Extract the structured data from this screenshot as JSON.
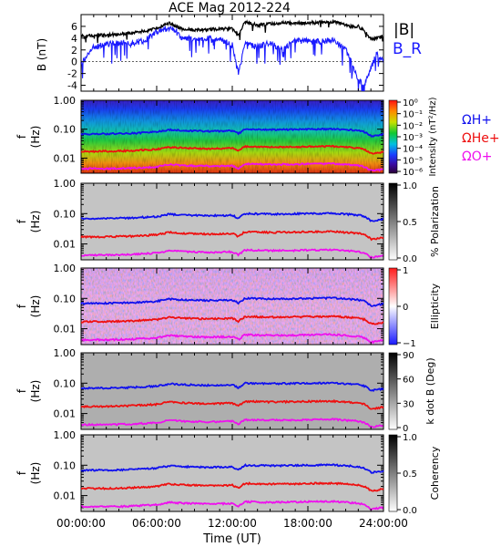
{
  "title": "ACE Mag 2012-224",
  "chart_data": [
    {
      "type": "line",
      "panel": "magnetic-field",
      "ylabel": "B (nT)",
      "ylim": [
        -5,
        8
      ],
      "yticks": [
        "-4",
        "-2",
        "0",
        "2",
        "4",
        "6"
      ],
      "legend": [
        "|B|",
        "B_R"
      ],
      "legend_placement": "right",
      "x_hours": [
        0,
        1,
        2,
        3,
        4,
        5,
        6,
        7,
        7.5,
        8,
        9,
        10,
        11,
        12,
        12.5,
        13,
        14,
        15,
        16,
        17,
        18,
        19,
        20,
        21,
        21.5,
        22,
        22.5,
        23,
        23.5,
        24
      ],
      "series": [
        {
          "name": "|B|",
          "color": "#000000",
          "values": [
            4.4,
            4.5,
            4.5,
            4.7,
            4.9,
            5.2,
            5.6,
            6.6,
            6.0,
            5.6,
            5.4,
            5.4,
            5.6,
            5.6,
            4.4,
            6.8,
            6.2,
            6.4,
            6.6,
            6.5,
            6.6,
            6.7,
            6.8,
            6.3,
            5.9,
            6.0,
            5.2,
            3.8,
            4.0,
            4.5
          ]
        },
        {
          "name": "B_R",
          "color": "#1a1aff",
          "values": [
            -0.5,
            2.5,
            3.0,
            3.2,
            3.0,
            3.6,
            5.0,
            5.8,
            5.2,
            4.0,
            3.8,
            4.0,
            3.9,
            2.8,
            -2.0,
            3.0,
            2.5,
            3.2,
            2.0,
            3.6,
            3.5,
            3.4,
            3.7,
            2.0,
            0.0,
            -3.0,
            -4.2,
            -1.0,
            1.5,
            0.0
          ]
        }
      ]
    },
    {
      "type": "heatmap",
      "panel": "power-spectrum",
      "ylabel": "f (Hz)",
      "ylog": true,
      "ylim": [
        0.003,
        1.0
      ],
      "yticks": [
        "1.00",
        "0.10",
        "0.01"
      ],
      "colorbar": {
        "label": "Intensity (nT²/Hz)",
        "ticks": [
          "10⁰",
          "10⁻¹",
          "10⁻²",
          "10⁻³",
          "10⁻⁴",
          "10⁻⁵",
          "10⁻⁶"
        ],
        "range": [
          -6,
          0
        ],
        "colormap": "rainbow"
      },
      "legend": [
        "ΩH+",
        "ΩHe+",
        "ΩO+"
      ]
    },
    {
      "type": "heatmap",
      "panel": "polarization",
      "ylabel": "f (Hz)",
      "ylog": true,
      "ylim": [
        0.003,
        1.0
      ],
      "yticks": [
        "1.00",
        "0.10",
        "0.01"
      ],
      "colorbar": {
        "label": "% Polarization",
        "ticks": [
          "1.0",
          "0.5",
          "0.0"
        ],
        "range": [
          0,
          1
        ],
        "colormap": "gray"
      }
    },
    {
      "type": "heatmap",
      "panel": "ellipticity",
      "ylabel": "f (Hz)",
      "ylog": true,
      "ylim": [
        0.003,
        1.0
      ],
      "yticks": [
        "1.00",
        "0.10",
        "0.01"
      ],
      "colorbar": {
        "label": "Ellipticity",
        "ticks": [
          "1",
          "0",
          "−1"
        ],
        "range": [
          -1,
          1
        ],
        "colormap": "blue-white-red"
      }
    },
    {
      "type": "heatmap",
      "panel": "k-dot-b",
      "ylabel": "f (Hz)",
      "ylog": true,
      "ylim": [
        0.003,
        1.0
      ],
      "yticks": [
        "1.00",
        "0.10",
        "0.01"
      ],
      "colorbar": {
        "label": "k dot B (Deg)",
        "ticks": [
          "90",
          "60",
          "30",
          "0"
        ],
        "range": [
          0,
          90
        ],
        "colormap": "gray"
      }
    },
    {
      "type": "heatmap",
      "panel": "coherency",
      "ylabel": "f (Hz)",
      "ylog": true,
      "ylim": [
        0.003,
        1.0
      ],
      "yticks": [
        "1.00",
        "0.10",
        "0.01"
      ],
      "colorbar": {
        "label": "Coherency",
        "ticks": [
          "1.0",
          "0.5",
          "0.0"
        ],
        "range": [
          0,
          1
        ],
        "colormap": "gray"
      }
    }
  ],
  "gyrofrequencies": {
    "x_hours": [
      0,
      2,
      4,
      6,
      7,
      8,
      10,
      12,
      12.5,
      13,
      15,
      17,
      18,
      20,
      21,
      22,
      22.5,
      23,
      23.5,
      24
    ],
    "lines": [
      {
        "name": "ΩH+",
        "color": "#1010ee",
        "freq": [
          0.068,
          0.069,
          0.072,
          0.08,
          0.095,
          0.09,
          0.085,
          0.088,
          0.07,
          0.1,
          0.096,
          0.098,
          0.1,
          0.102,
          0.096,
          0.09,
          0.08,
          0.058,
          0.06,
          0.066
        ]
      },
      {
        "name": "ΩHe+",
        "color": "#ee1010",
        "freq": [
          0.017,
          0.0172,
          0.018,
          0.02,
          0.024,
          0.0225,
          0.021,
          0.022,
          0.0175,
          0.025,
          0.024,
          0.0245,
          0.025,
          0.0255,
          0.024,
          0.0225,
          0.02,
          0.0145,
          0.015,
          0.0165
        ]
      },
      {
        "name": "ΩO+",
        "color": "#ee10ee",
        "freq": [
          0.0043,
          0.0043,
          0.0045,
          0.005,
          0.006,
          0.0056,
          0.0053,
          0.0055,
          0.0044,
          0.0063,
          0.006,
          0.0061,
          0.0063,
          0.0064,
          0.006,
          0.0056,
          0.005,
          0.0036,
          0.0038,
          0.0041
        ]
      }
    ]
  },
  "xaxis": {
    "label": "Time (UT)",
    "range": [
      0,
      24
    ],
    "tick_hours": [
      0,
      6,
      12,
      18,
      24
    ],
    "ticks": [
      "00:00:00",
      "06:00:00",
      "12:00:00",
      "18:00:00",
      "24:00:00"
    ]
  }
}
